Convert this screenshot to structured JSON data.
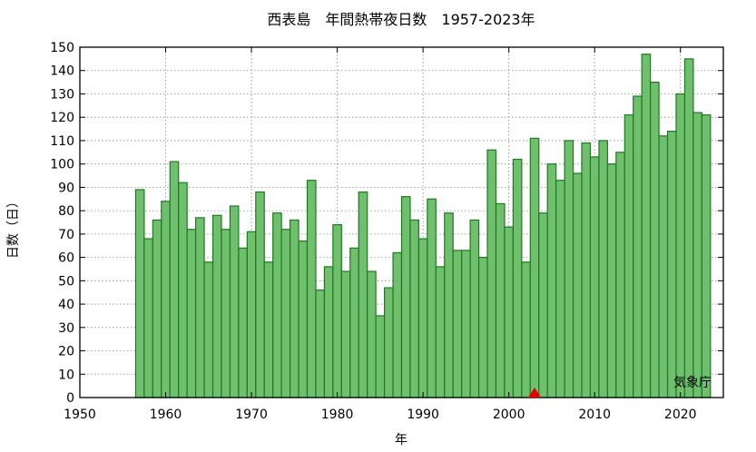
{
  "chart_data": {
    "type": "bar",
    "title": "西表島　年間熱帯夜日数　1957-2023年",
    "xlabel": "年",
    "ylabel": "日数（日）",
    "source_label": "気象庁",
    "xlim": [
      1950,
      2025
    ],
    "ylim": [
      0,
      150
    ],
    "x_ticks": [
      1950,
      1960,
      1970,
      1980,
      1990,
      2000,
      2010,
      2020
    ],
    "y_ticks": [
      0,
      10,
      20,
      30,
      40,
      50,
      60,
      70,
      80,
      90,
      100,
      110,
      120,
      130,
      140,
      150
    ],
    "grid": true,
    "bar_color": "#6fbf6f",
    "bar_edge_color": "#1f7a1f",
    "marker_color": "#e60000",
    "marker_year": 2003,
    "years": [
      1957,
      1958,
      1959,
      1960,
      1961,
      1962,
      1963,
      1964,
      1965,
      1966,
      1967,
      1968,
      1969,
      1970,
      1971,
      1972,
      1973,
      1974,
      1975,
      1976,
      1977,
      1978,
      1979,
      1980,
      1981,
      1982,
      1983,
      1984,
      1985,
      1986,
      1987,
      1988,
      1989,
      1990,
      1991,
      1992,
      1993,
      1994,
      1995,
      1996,
      1997,
      1998,
      1999,
      2000,
      2001,
      2002,
      2003,
      2004,
      2005,
      2006,
      2007,
      2008,
      2009,
      2010,
      2011,
      2012,
      2013,
      2014,
      2015,
      2016,
      2017,
      2018,
      2019,
      2020,
      2021,
      2022,
      2023
    ],
    "values": [
      89,
      68,
      76,
      84,
      101,
      92,
      72,
      77,
      58,
      78,
      72,
      82,
      64,
      71,
      88,
      58,
      79,
      72,
      76,
      67,
      93,
      46,
      56,
      74,
      54,
      64,
      88,
      54,
      35,
      47,
      62,
      86,
      76,
      68,
      85,
      56,
      79,
      63,
      63,
      76,
      60,
      106,
      83,
      73,
      102,
      58,
      111,
      79,
      100,
      93,
      110,
      96,
      109,
      103,
      110,
      100,
      105,
      121,
      129,
      147,
      135,
      112,
      114,
      130,
      145,
      122,
      121
    ]
  }
}
